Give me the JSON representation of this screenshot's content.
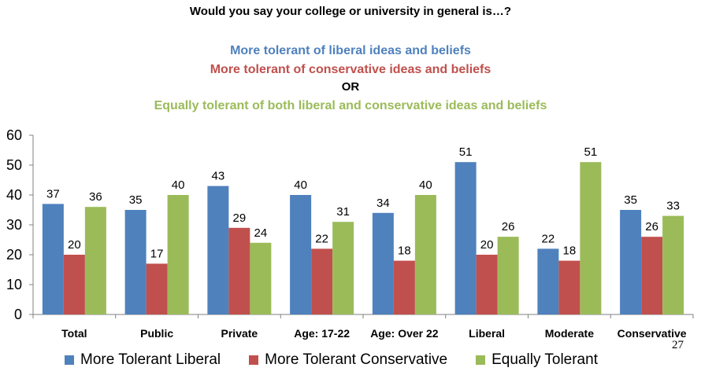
{
  "colors": {
    "liberal": "#4F81BD",
    "conservative": "#C0504D",
    "equal": "#9BBB59",
    "axis": "#808080"
  },
  "header": {
    "question": "Would you say your college or university in general is…?",
    "line1": "More tolerant of liberal ideas and beliefs",
    "line2": "More tolerant of conservative ideas and beliefs",
    "line3": "OR",
    "line4": "Equally tolerant of both liberal and conservative ideas and beliefs"
  },
  "page_number": "27",
  "chart_data": {
    "type": "bar",
    "ylim": [
      0,
      60
    ],
    "yticks": [
      0,
      10,
      20,
      30,
      40,
      50,
      60
    ],
    "grid": false,
    "legend_position": "bottom",
    "categories": [
      "Total",
      "Public",
      "Private",
      "Age: 17-22",
      "Age: Over 22",
      "Liberal",
      "Moderate",
      "Conservative"
    ],
    "series": [
      {
        "name": "More Tolerant Liberal",
        "color": "#4F81BD",
        "values": [
          37,
          35,
          43,
          40,
          34,
          51,
          22,
          35
        ]
      },
      {
        "name": "More Tolerant Conservative",
        "color": "#C0504D",
        "values": [
          20,
          17,
          29,
          22,
          18,
          20,
          18,
          26
        ]
      },
      {
        "name": "Equally Tolerant",
        "color": "#9BBB59",
        "values": [
          36,
          40,
          24,
          31,
          40,
          26,
          51,
          33
        ]
      }
    ]
  }
}
